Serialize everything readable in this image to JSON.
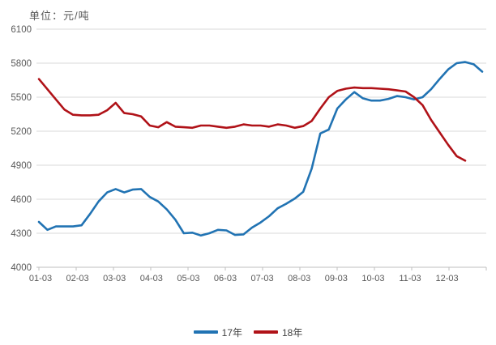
{
  "title": "单位：元/吨",
  "colors": {
    "series_17": "#2173B3",
    "series_18": "#B01218",
    "grid": "#D9D9D9",
    "axis": "#BFBFBF",
    "tick_text": "#595959"
  },
  "chart_data": {
    "type": "line",
    "title": "单位：元/吨",
    "xlabel": "",
    "ylabel": "元/吨",
    "ylim": [
      4000,
      6100
    ],
    "ytick_step": 300,
    "yticks": [
      6100,
      5800,
      5500,
      5200,
      4900,
      4600,
      4300,
      4000
    ],
    "x_labels": [
      "01-03",
      "02-03",
      "03-03",
      "04-03",
      "05-03",
      "06-03",
      "07-03",
      "08-03",
      "09-03",
      "10-03",
      "11-03",
      "12-03"
    ],
    "x_frequency": "weekly",
    "grid": true,
    "legend_position": "bottom",
    "series": [
      {
        "name": "17年",
        "color": "#2173B3",
        "values": [
          4400,
          4330,
          4360,
          4360,
          4360,
          4370,
          4470,
          4580,
          4660,
          4690,
          4660,
          4685,
          4690,
          4620,
          4580,
          4510,
          4420,
          4300,
          4305,
          4280,
          4300,
          4330,
          4325,
          4285,
          4290,
          4350,
          4395,
          4450,
          4520,
          4560,
          4605,
          4665,
          4870,
          5180,
          5215,
          5400,
          5480,
          5545,
          5490,
          5470,
          5470,
          5485,
          5510,
          5500,
          5480,
          5500,
          5570,
          5660,
          5745,
          5800,
          5810,
          5790,
          5725
        ]
      },
      {
        "name": "18年",
        "color": "#B01218",
        "values": [
          5660,
          5570,
          5480,
          5390,
          5345,
          5340,
          5340,
          5345,
          5385,
          5450,
          5360,
          5350,
          5330,
          5250,
          5235,
          5280,
          5240,
          5235,
          5230,
          5250,
          5250,
          5240,
          5230,
          5240,
          5260,
          5250,
          5250,
          5240,
          5260,
          5250,
          5230,
          5245,
          5290,
          5400,
          5500,
          5555,
          5575,
          5585,
          5580,
          5580,
          5575,
          5570,
          5560,
          5550,
          5500,
          5430,
          5300,
          5190,
          5080,
          4980,
          4940
        ]
      }
    ]
  }
}
